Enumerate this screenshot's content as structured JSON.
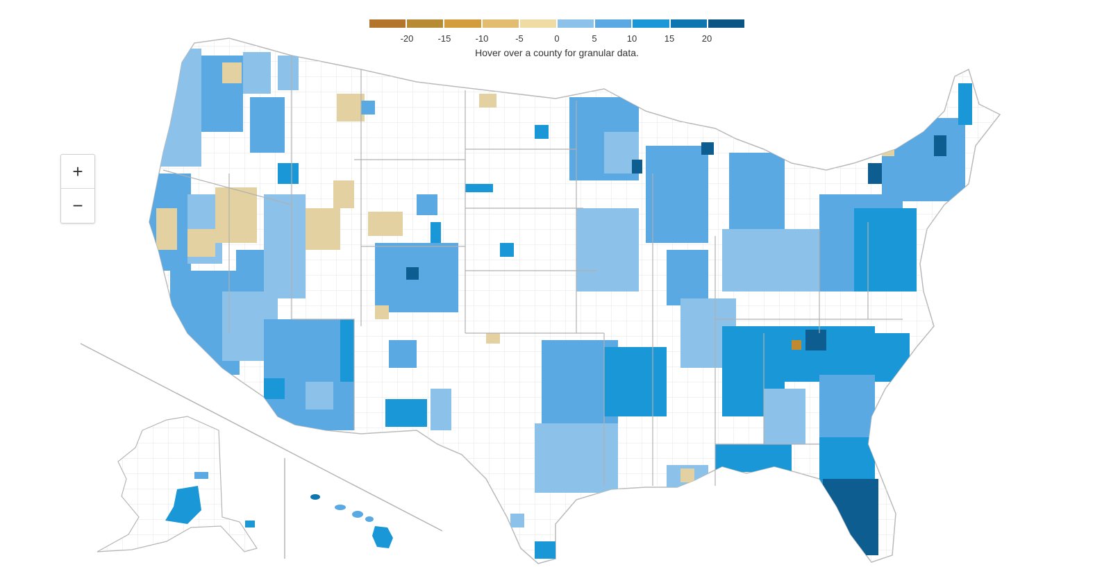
{
  "legend": {
    "colors": [
      "#b3742c",
      "#b78a34",
      "#d39d3d",
      "#e3bd6f",
      "#f0dba5",
      "#8cc2ea",
      "#5aa9e3",
      "#1a97d6",
      "#0d76b0",
      "#0a5583"
    ],
    "ticks": [
      "-20",
      "-15",
      "-10",
      "-5",
      "0",
      "5",
      "10",
      "15",
      "20"
    ],
    "note": "Hover over a county for granular data."
  },
  "zoom": {
    "in_label": "+",
    "out_label": "−"
  },
  "map": {
    "regions": [
      "Contiguous United States",
      "Alaska",
      "Hawaii"
    ]
  }
}
